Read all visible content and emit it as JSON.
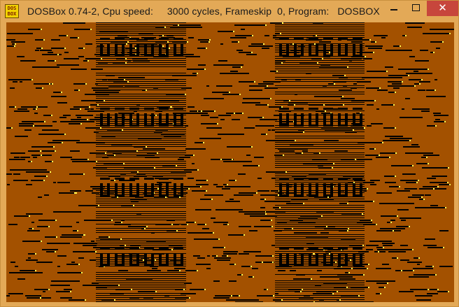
{
  "window": {
    "title": "DOSBox 0.74-2, Cpu speed:     3000 cycles, Frameskip  0, Program:   DOSBOX",
    "icon_label": "DOS BOX",
    "icon_name": "dosbox-icon",
    "controls": {
      "minimize": "minimize-icon",
      "maximize": "maximize-icon",
      "close": "close-icon",
      "close_glyph": "✕"
    }
  },
  "screen": {
    "background_color": "#a35100",
    "glitch_color": "#000000",
    "highlight_color": "#ffff55"
  }
}
